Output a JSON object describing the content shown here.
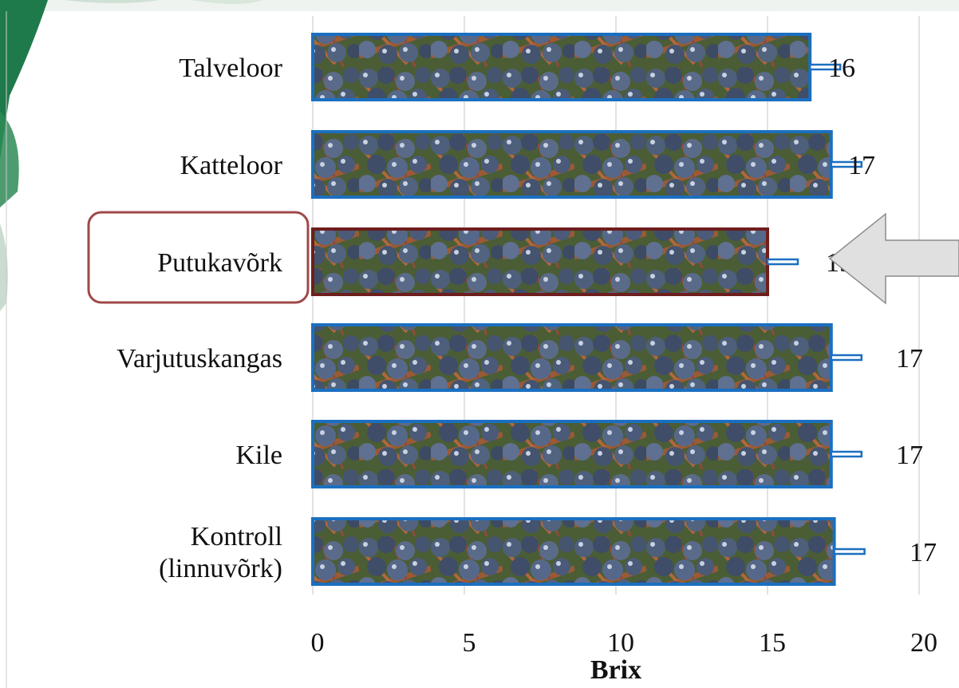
{
  "chart_data": {
    "type": "bar",
    "orientation": "horizontal",
    "categories": [
      "Talveloor",
      "Katteloor",
      "Putukavõrk",
      "Varjutuskangas",
      "Kile",
      "Kontroll (linnuvõrk)"
    ],
    "category_lines": [
      [
        "Talveloor"
      ],
      [
        "Katteloor"
      ],
      [
        "Putukavõrk"
      ],
      [
        "Varjutuskangas"
      ],
      [
        "Kile"
      ],
      [
        "Kontroll",
        "(linnuvõrk)"
      ]
    ],
    "values": [
      16.4,
      17.1,
      15.0,
      17.1,
      17.1,
      17.2
    ],
    "error": [
      1.0,
      1.0,
      1.0,
      1.0,
      1.0,
      1.0
    ],
    "data_labels": [
      "16",
      "17",
      "15",
      "17",
      "17",
      "17"
    ],
    "xlabel": "Brix",
    "xlim": [
      0,
      20
    ],
    "xticks": [
      0,
      5,
      10,
      15,
      20
    ],
    "grid": "vertical",
    "highlighted_category": "Putukavõrk",
    "colors": {
      "bar_border": "#1b6fc0",
      "highlight_border": "#6e1e1e",
      "highlight_box": "#a04848",
      "grid": "#d9d9d9",
      "arrow_fill": "#e0e0e0",
      "arrow_stroke": "#8c8c8c",
      "decoration_green": "#1f7a4b"
    },
    "bar_fill": "grape-cluster-photo"
  }
}
